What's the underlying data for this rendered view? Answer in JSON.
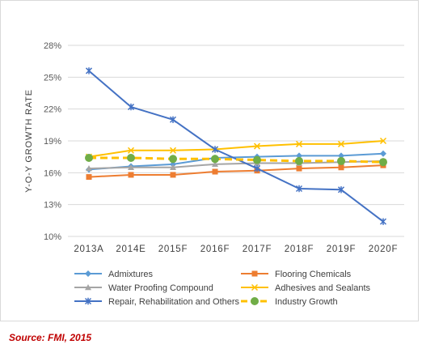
{
  "chart_data": {
    "type": "line",
    "ylabel": "Y-O-Y GROWTH RATE",
    "ylim": [
      10,
      28
    ],
    "ytick_values": [
      10,
      13,
      16,
      19,
      22,
      25,
      28
    ],
    "ytick_labels": [
      "10%",
      "13%",
      "16%",
      "19%",
      "22%",
      "25%",
      "28%"
    ],
    "categories": [
      "2013A",
      "2014E",
      "2015F",
      "2016F",
      "2017F",
      "2018F",
      "2019F",
      "2020F"
    ],
    "grid": "horizontal",
    "legend_position": "bottom",
    "series": [
      {
        "name": "Admixtures",
        "marker": "diamond",
        "color": "#5b9bd5",
        "dashed": false,
        "values": [
          16.3,
          16.6,
          16.8,
          17.4,
          17.5,
          17.6,
          17.6,
          17.8
        ]
      },
      {
        "name": "Flooring Chemicals",
        "marker": "square",
        "color": "#ed7d31",
        "dashed": false,
        "values": [
          15.6,
          15.8,
          15.8,
          16.1,
          16.2,
          16.4,
          16.5,
          16.7
        ]
      },
      {
        "name": "Water Proofing Compound",
        "marker": "triangle",
        "color": "#a5a5a5",
        "dashed": false,
        "values": [
          16.4,
          16.5,
          16.5,
          16.8,
          16.9,
          16.9,
          17.0,
          17.1
        ]
      },
      {
        "name": "Adhesives and Sealants",
        "marker": "x",
        "color": "#ffc000",
        "dashed": false,
        "values": [
          17.5,
          18.1,
          18.1,
          18.2,
          18.5,
          18.7,
          18.7,
          19.0
        ]
      },
      {
        "name": "Repair, Rehabilitation and Others",
        "marker": "star",
        "color": "#4472c4",
        "dashed": false,
        "values": [
          25.6,
          22.2,
          21.0,
          18.2,
          16.4,
          14.5,
          14.4,
          11.4
        ]
      },
      {
        "name": "Industry Growth",
        "marker": "circle",
        "color": "#ffc000",
        "marker_color": "#70ad47",
        "dashed": true,
        "values": [
          17.4,
          17.4,
          17.3,
          17.3,
          17.2,
          17.1,
          17.1,
          17.0
        ]
      }
    ]
  },
  "source": "Source: FMI, 2015"
}
